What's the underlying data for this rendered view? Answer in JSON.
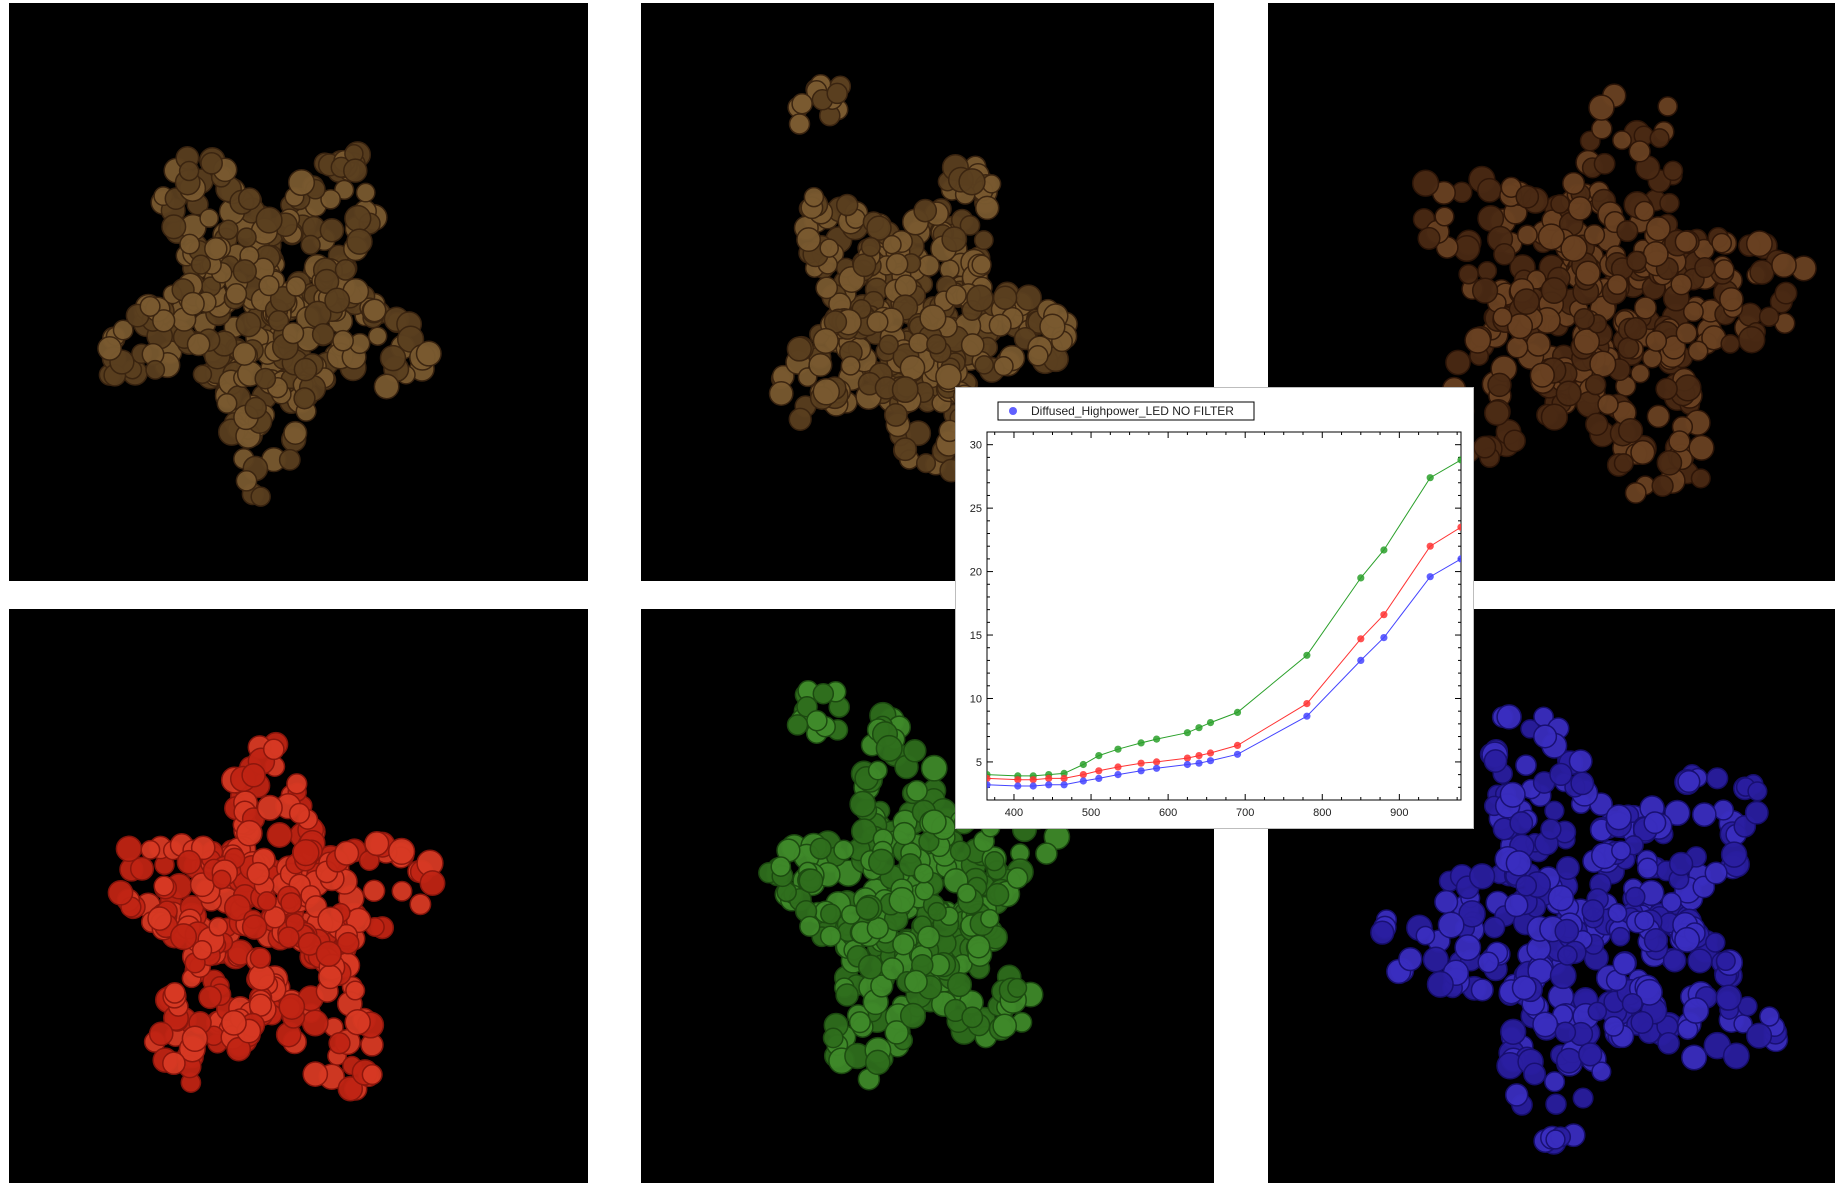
{
  "colors": {
    "background": "#ffffff",
    "tile_background": "#000000",
    "seed_rgb": "#5a3f1f",
    "seed_rgb_dark": "#4a2a14",
    "seed_red": "#c02414",
    "seed_green": "#2f6e1d",
    "seed_blue": "#2a1ea0",
    "series_green": "#2aa02a",
    "series_red": "#ff3333",
    "series_blue": "#4444ff"
  },
  "tiles": [
    {
      "name": "tile-seeds-rgb-1",
      "variant": "rgb"
    },
    {
      "name": "tile-seeds-rgb-2",
      "variant": "rgb"
    },
    {
      "name": "tile-seeds-rgb-3",
      "variant": "rgb_dark"
    },
    {
      "name": "tile-seeds-red",
      "variant": "red"
    },
    {
      "name": "tile-seeds-green",
      "variant": "green"
    },
    {
      "name": "tile-seeds-blue",
      "variant": "blue"
    }
  ],
  "chart_data": {
    "type": "line",
    "legend": {
      "label": "Diffused_Highpower_LED NO FILTER",
      "placement": "top-left"
    },
    "xlim": [
      365,
      980
    ],
    "ylim": [
      2,
      31
    ],
    "xticks": [
      400,
      500,
      600,
      700,
      800,
      900
    ],
    "yticks": [
      5,
      10,
      15,
      20,
      25,
      30
    ],
    "grid": false,
    "x": [
      365,
      405,
      425,
      445,
      465,
      490,
      510,
      535,
      565,
      585,
      625,
      640,
      655,
      690,
      780,
      850,
      880,
      940,
      980
    ],
    "series": [
      {
        "color": "#2aa02a",
        "values": [
          4.0,
          3.9,
          3.9,
          4.0,
          4.1,
          4.8,
          5.5,
          6.0,
          6.5,
          6.8,
          7.3,
          7.7,
          8.1,
          8.9,
          13.4,
          19.5,
          21.7,
          27.4,
          28.8
        ]
      },
      {
        "color": "#ff3333",
        "values": [
          3.7,
          3.6,
          3.6,
          3.7,
          3.7,
          4.0,
          4.3,
          4.6,
          4.9,
          5.0,
          5.3,
          5.5,
          5.7,
          6.3,
          9.6,
          14.7,
          16.6,
          22.0,
          23.5
        ]
      },
      {
        "color": "#4444ff",
        "values": [
          3.2,
          3.1,
          3.1,
          3.2,
          3.2,
          3.5,
          3.7,
          4.0,
          4.3,
          4.5,
          4.8,
          4.9,
          5.1,
          5.6,
          8.6,
          13.0,
          14.8,
          19.6,
          21.0
        ]
      }
    ]
  }
}
